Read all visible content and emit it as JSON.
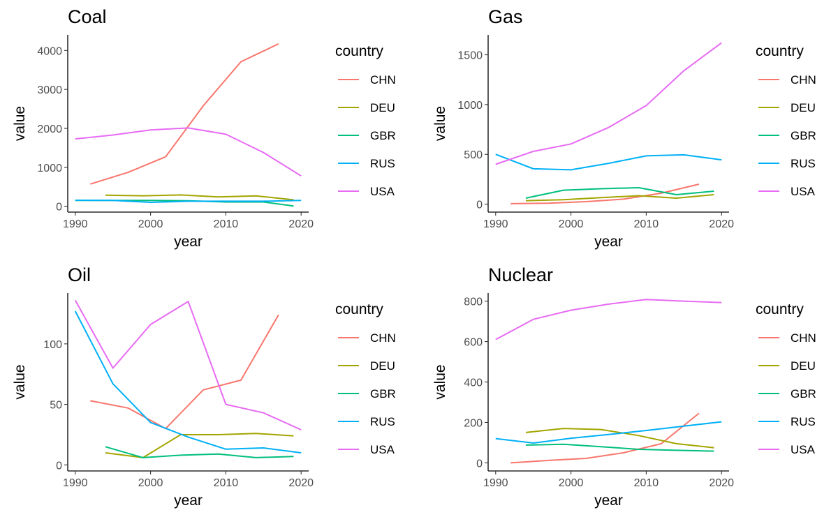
{
  "legend": {
    "title": "country",
    "entries": [
      {
        "name": "CHN",
        "color": "#F8766D"
      },
      {
        "name": "DEU",
        "color": "#A3A500"
      },
      {
        "name": "GBR",
        "color": "#00BF7D"
      },
      {
        "name": "RUS",
        "color": "#00B0F6"
      },
      {
        "name": "USA",
        "color": "#E76BF3"
      }
    ]
  },
  "chart_data": [
    {
      "type": "line",
      "title": "Coal",
      "xlabel": "year",
      "ylabel": "value",
      "xlim": [
        1989,
        2021
      ],
      "ylim": [
        -150,
        4400
      ],
      "xticks": [
        1990,
        2000,
        2010,
        2020
      ],
      "yticks": [
        0,
        1000,
        2000,
        3000,
        4000
      ],
      "grid": false,
      "legend": "right",
      "series": [
        {
          "name": "CHN",
          "x": [
            1992,
            1997,
            2002,
            2007,
            2012,
            2017
          ],
          "y": [
            570,
            870,
            1270,
            2580,
            3710,
            4170
          ]
        },
        {
          "name": "DEU",
          "x": [
            1994,
            1999,
            2004,
            2009,
            2014,
            2019
          ],
          "y": [
            285,
            270,
            290,
            240,
            265,
            165
          ]
        },
        {
          "name": "GBR",
          "x": [
            1990,
            1995,
            2000,
            2005,
            2010,
            2015,
            2019
          ],
          "y": [
            150,
            150,
            150,
            140,
            110,
            110,
            5
          ]
        },
        {
          "name": "RUS",
          "x": [
            1990,
            1995,
            2000,
            2005,
            2010,
            2015,
            2020
          ],
          "y": [
            155,
            150,
            100,
            130,
            130,
            130,
            150
          ]
        },
        {
          "name": "USA",
          "x": [
            1990,
            1995,
            2000,
            2005,
            2010,
            2015,
            2020
          ],
          "y": [
            1730,
            1830,
            1960,
            2010,
            1850,
            1380,
            780
          ]
        }
      ]
    },
    {
      "type": "line",
      "title": "Gas",
      "xlabel": "year",
      "ylabel": "value",
      "xlim": [
        1989,
        2021
      ],
      "ylim": [
        -80,
        1700
      ],
      "xticks": [
        1990,
        2000,
        2010,
        2020
      ],
      "yticks": [
        0,
        500,
        1000,
        1500
      ],
      "grid": false,
      "legend": "right",
      "series": [
        {
          "name": "CHN",
          "x": [
            1992,
            1997,
            2002,
            2007,
            2012,
            2017
          ],
          "y": [
            5,
            10,
            25,
            50,
            110,
            200
          ]
        },
        {
          "name": "DEU",
          "x": [
            1994,
            1999,
            2004,
            2009,
            2014,
            2019
          ],
          "y": [
            35,
            45,
            65,
            85,
            60,
            95
          ]
        },
        {
          "name": "GBR",
          "x": [
            1994,
            1999,
            2004,
            2009,
            2014,
            2019
          ],
          "y": [
            60,
            140,
            155,
            165,
            95,
            130
          ]
        },
        {
          "name": "RUS",
          "x": [
            1990,
            1995,
            2000,
            2005,
            2010,
            2015,
            2020
          ],
          "y": [
            500,
            355,
            345,
            410,
            485,
            495,
            445
          ]
        },
        {
          "name": "USA",
          "x": [
            1990,
            1995,
            2000,
            2005,
            2010,
            2015,
            2020
          ],
          "y": [
            400,
            530,
            605,
            770,
            990,
            1340,
            1620
          ]
        }
      ]
    },
    {
      "type": "line",
      "title": "Oil",
      "xlabel": "year",
      "ylabel": "value",
      "xlim": [
        1989,
        2021
      ],
      "ylim": [
        -5,
        142
      ],
      "xticks": [
        1990,
        2000,
        2010,
        2020
      ],
      "yticks": [
        0,
        50,
        100
      ],
      "grid": false,
      "legend": "right",
      "series": [
        {
          "name": "CHN",
          "x": [
            1992,
            1997,
            2002,
            2007,
            2012,
            2017
          ],
          "y": [
            53,
            47,
            30,
            62,
            70,
            124
          ]
        },
        {
          "name": "DEU",
          "x": [
            1994,
            1999,
            2004,
            2009,
            2014,
            2019
          ],
          "y": [
            10,
            6,
            25,
            25,
            26,
            24
          ]
        },
        {
          "name": "GBR",
          "x": [
            1994,
            1999,
            2004,
            2009,
            2014,
            2019
          ],
          "y": [
            15,
            6,
            8,
            9,
            6,
            7
          ]
        },
        {
          "name": "RUS",
          "x": [
            1990,
            1995,
            2000,
            2005,
            2010,
            2015,
            2020
          ],
          "y": [
            127,
            67,
            35,
            23,
            13,
            14,
            10
          ]
        },
        {
          "name": "USA",
          "x": [
            1990,
            1995,
            2000,
            2005,
            2010,
            2015,
            2020
          ],
          "y": [
            136,
            80,
            116,
            135,
            50,
            43,
            29
          ]
        }
      ]
    },
    {
      "type": "line",
      "title": "Nuclear",
      "xlabel": "year",
      "ylabel": "value",
      "xlim": [
        1989,
        2021
      ],
      "ylim": [
        -40,
        840
      ],
      "xticks": [
        1990,
        2000,
        2010,
        2020
      ],
      "yticks": [
        0,
        200,
        400,
        600,
        800
      ],
      "grid": false,
      "legend": "right",
      "series": [
        {
          "name": "CHN",
          "x": [
            1992,
            1997,
            2002,
            2007,
            2012,
            2017
          ],
          "y": [
            0,
            12,
            22,
            50,
            95,
            245
          ]
        },
        {
          "name": "DEU",
          "x": [
            1994,
            1999,
            2004,
            2009,
            2014,
            2019
          ],
          "y": [
            150,
            170,
            165,
            135,
            95,
            75
          ]
        },
        {
          "name": "GBR",
          "x": [
            1994,
            1999,
            2004,
            2009,
            2014,
            2019
          ],
          "y": [
            88,
            92,
            80,
            67,
            62,
            58
          ]
        },
        {
          "name": "RUS",
          "x": [
            1990,
            1995,
            2000,
            2005,
            2010,
            2015,
            2020
          ],
          "y": [
            120,
            98,
            122,
            140,
            160,
            182,
            203
          ]
        },
        {
          "name": "USA",
          "x": [
            1990,
            1995,
            2000,
            2005,
            2010,
            2015,
            2020
          ],
          "y": [
            610,
            710,
            755,
            785,
            808,
            800,
            793
          ]
        }
      ]
    }
  ]
}
